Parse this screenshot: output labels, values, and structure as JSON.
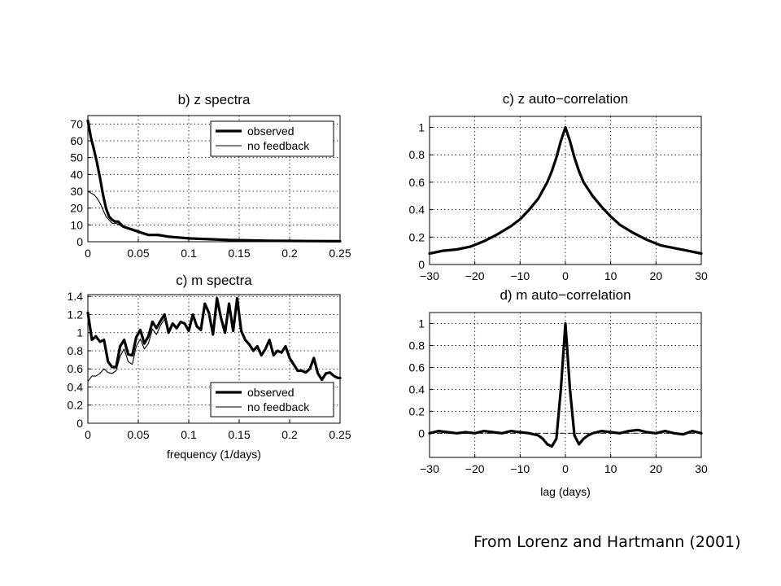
{
  "caption": "From Lorenz and Hartmann (2001)",
  "colors": {
    "line": "#000000",
    "grid": "#000000",
    "background": "#ffffff"
  },
  "chart_data": [
    {
      "id": "b",
      "type": "line",
      "title": "b) z spectra",
      "xlabel": "",
      "ylabel": "",
      "xlim": [
        0,
        0.25
      ],
      "ylim": [
        0,
        75
      ],
      "xticks": [
        0,
        0.05,
        0.1,
        0.15,
        0.2,
        0.25
      ],
      "xtick_labels": [
        "0",
        "0.05",
        "0.1",
        "0.15",
        "0.2",
        "0.25"
      ],
      "yticks": [
        0,
        10,
        20,
        30,
        40,
        50,
        60,
        70
      ],
      "ytick_labels": [
        "0",
        "10",
        "20",
        "30",
        "40",
        "50",
        "60",
        "70"
      ],
      "grid": true,
      "legend": "top-right",
      "series": [
        {
          "name": "observed",
          "style": "thick",
          "x": [
            0,
            0.003,
            0.006,
            0.009,
            0.012,
            0.015,
            0.018,
            0.021,
            0.024,
            0.027,
            0.03,
            0.035,
            0.04,
            0.045,
            0.05,
            0.055,
            0.06,
            0.07,
            0.08,
            0.09,
            0.1,
            0.12,
            0.14,
            0.16,
            0.18,
            0.2,
            0.22,
            0.25
          ],
          "y": [
            72,
            62,
            55,
            47,
            38,
            28,
            20,
            15,
            13,
            12,
            12,
            9,
            8,
            7,
            6,
            5,
            4,
            4,
            3,
            2.5,
            2,
            1.5,
            1,
            0.8,
            0.6,
            0.5,
            0.4,
            0.3
          ]
        },
        {
          "name": "no feedback",
          "style": "thin",
          "x": [
            0,
            0.003,
            0.006,
            0.009,
            0.012,
            0.015,
            0.018,
            0.021,
            0.024,
            0.027,
            0.03,
            0.035,
            0.04,
            0.045,
            0.05,
            0.055,
            0.06,
            0.07,
            0.08,
            0.09,
            0.1,
            0.12,
            0.14,
            0.16,
            0.18,
            0.2,
            0.22,
            0.25
          ],
          "y": [
            30,
            29,
            28,
            26,
            23,
            19,
            15,
            13,
            11,
            11,
            10.5,
            8.5,
            7.5,
            6.5,
            5.5,
            4.5,
            4,
            3.5,
            3,
            2.5,
            2,
            1.5,
            1,
            0.8,
            0.6,
            0.5,
            0.4,
            0.3
          ]
        }
      ]
    },
    {
      "id": "c_m",
      "type": "line",
      "title": "c) m spectra",
      "xlabel": "frequency (1/days)",
      "ylabel": "",
      "xlim": [
        0,
        0.25
      ],
      "ylim": [
        0,
        1.42
      ],
      "xticks": [
        0,
        0.05,
        0.1,
        0.15,
        0.2,
        0.25
      ],
      "xtick_labels": [
        "0",
        "0.05",
        "0.1",
        "0.15",
        "0.2",
        "0.25"
      ],
      "yticks": [
        0,
        0.2,
        0.4,
        0.6,
        0.8,
        1,
        1.2,
        1.4
      ],
      "ytick_labels": [
        "0",
        "0.2",
        "0.4",
        "0.6",
        "0.8",
        "1",
        "1.2",
        "1.4"
      ],
      "grid": true,
      "legend": "bottom-right",
      "series": [
        {
          "name": "observed",
          "style": "thick",
          "x": [
            0,
            0.004,
            0.008,
            0.012,
            0.016,
            0.02,
            0.024,
            0.028,
            0.032,
            0.036,
            0.04,
            0.044,
            0.048,
            0.052,
            0.056,
            0.06,
            0.064,
            0.068,
            0.072,
            0.076,
            0.08,
            0.084,
            0.088,
            0.092,
            0.096,
            0.1,
            0.104,
            0.108,
            0.112,
            0.116,
            0.12,
            0.124,
            0.128,
            0.132,
            0.136,
            0.14,
            0.144,
            0.148,
            0.152,
            0.156,
            0.16,
            0.164,
            0.168,
            0.172,
            0.176,
            0.18,
            0.184,
            0.188,
            0.192,
            0.196,
            0.2,
            0.204,
            0.208,
            0.212,
            0.216,
            0.22,
            0.224,
            0.228,
            0.232,
            0.236,
            0.24,
            0.244,
            0.248,
            0.25
          ],
          "y": [
            1.22,
            0.92,
            0.96,
            0.9,
            0.92,
            0.68,
            0.62,
            0.62,
            0.85,
            0.92,
            0.76,
            0.75,
            0.95,
            1.03,
            0.88,
            0.96,
            1.12,
            1.05,
            1.13,
            1.2,
            1.0,
            1.1,
            1.05,
            1.12,
            1.1,
            1.02,
            1.2,
            1.07,
            1.03,
            1.32,
            1.22,
            0.98,
            1.38,
            1.16,
            1.0,
            1.32,
            1.02,
            1.38,
            1.02,
            0.92,
            0.87,
            0.8,
            0.85,
            0.75,
            0.82,
            0.92,
            0.75,
            0.8,
            0.78,
            0.85,
            0.72,
            0.65,
            0.58,
            0.58,
            0.56,
            0.6,
            0.72,
            0.55,
            0.48,
            0.55,
            0.56,
            0.52,
            0.5,
            0.5
          ]
        },
        {
          "name": "no feedback",
          "style": "thin",
          "x": [
            0,
            0.004,
            0.008,
            0.012,
            0.016,
            0.02,
            0.024,
            0.028,
            0.032,
            0.036,
            0.04,
            0.044,
            0.048,
            0.052,
            0.056,
            0.06,
            0.064,
            0.068,
            0.072,
            0.076,
            0.08
          ],
          "y": [
            0.46,
            0.52,
            0.52,
            0.55,
            0.6,
            0.56,
            0.55,
            0.58,
            0.74,
            0.82,
            0.68,
            0.65,
            0.85,
            0.93,
            0.82,
            0.88,
            1.04,
            0.98,
            1.08,
            1.15,
            1.0
          ]
        }
      ]
    },
    {
      "id": "c_z",
      "type": "line",
      "title": "c) z auto−correlation",
      "xlabel": "",
      "ylabel": "",
      "xlim": [
        -30,
        30
      ],
      "ylim": [
        0,
        1.08
      ],
      "xticks": [
        -30,
        -20,
        -10,
        0,
        10,
        20,
        30
      ],
      "xtick_labels": [
        "−30",
        "−20",
        "−10",
        "0",
        "10",
        "20",
        "30"
      ],
      "yticks": [
        0,
        0.2,
        0.4,
        0.6,
        0.8,
        1
      ],
      "ytick_labels": [
        "0",
        "0.2",
        "0.4",
        "0.6",
        "0.8",
        "1"
      ],
      "grid": true,
      "series": [
        {
          "style": "thick",
          "x": [
            -30,
            -27,
            -24,
            -21,
            -18,
            -15,
            -12,
            -10,
            -8,
            -6,
            -4,
            -3,
            -2,
            -1,
            0,
            1,
            2,
            3,
            4,
            6,
            8,
            10,
            12,
            15,
            18,
            21,
            24,
            27,
            30
          ],
          "y": [
            0.08,
            0.1,
            0.11,
            0.13,
            0.17,
            0.22,
            0.28,
            0.33,
            0.4,
            0.48,
            0.6,
            0.68,
            0.78,
            0.9,
            1.0,
            0.9,
            0.78,
            0.68,
            0.6,
            0.5,
            0.42,
            0.35,
            0.29,
            0.23,
            0.18,
            0.14,
            0.12,
            0.1,
            0.08
          ]
        }
      ]
    },
    {
      "id": "d",
      "type": "line",
      "title": "d) m auto−correlation",
      "xlabel": "lag (days)",
      "ylabel": "",
      "xlim": [
        -30,
        30
      ],
      "ylim": [
        -0.22,
        1.1
      ],
      "xticks": [
        -30,
        -20,
        -10,
        0,
        10,
        20,
        30
      ],
      "xtick_labels": [
        "−30",
        "−20",
        "−10",
        "0",
        "10",
        "20",
        "30"
      ],
      "yticks": [
        0,
        0.2,
        0.4,
        0.6,
        0.8,
        1
      ],
      "ytick_labels": [
        "0",
        "0.2",
        "0.4",
        "0.6",
        "0.8",
        "1"
      ],
      "grid": true,
      "series": [
        {
          "style": "thick",
          "x": [
            -30,
            -28,
            -26,
            -24,
            -22,
            -20,
            -18,
            -16,
            -14,
            -12,
            -10,
            -8,
            -6,
            -5,
            -4,
            -3,
            -2,
            -1,
            0,
            1,
            2,
            3,
            4,
            5,
            6,
            8,
            10,
            12,
            14,
            16,
            18,
            20,
            22,
            24,
            26,
            28,
            30
          ],
          "y": [
            0.0,
            0.02,
            0.01,
            0.0,
            0.01,
            0.0,
            0.02,
            0.01,
            0.0,
            0.02,
            0.01,
            0.0,
            -0.02,
            -0.05,
            -0.1,
            -0.12,
            -0.05,
            0.4,
            1.0,
            0.4,
            -0.02,
            -0.1,
            -0.05,
            -0.02,
            0.0,
            0.02,
            0.01,
            0.0,
            0.02,
            0.03,
            0.01,
            0.0,
            0.02,
            0.0,
            -0.01,
            0.02,
            0.0
          ]
        }
      ]
    }
  ]
}
